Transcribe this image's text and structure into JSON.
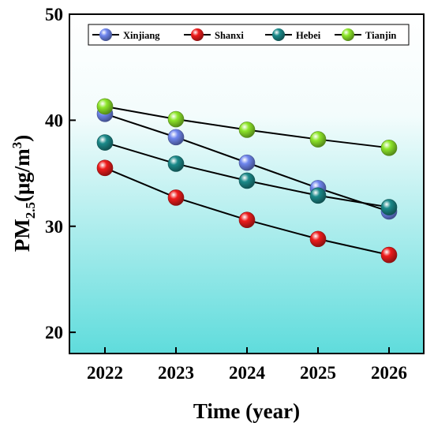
{
  "chart_data": {
    "type": "line",
    "title": "",
    "xlabel": "Time (year)",
    "ylabel": {
      "prefix": "PM",
      "subscript": "2.5",
      "unit_open": "(μg/m",
      "superscript": "3",
      "unit_close": ")"
    },
    "categories": [
      "2022",
      "2023",
      "2024",
      "2025",
      "2026"
    ],
    "ylim": [
      18,
      50
    ],
    "yticks": [
      20,
      30,
      40,
      50
    ],
    "grid": false,
    "legend_position": "top",
    "series": [
      {
        "name": "Xinjiang",
        "color": "#6f86ee",
        "values": [
          40.6,
          38.4,
          36.0,
          33.6,
          31.4
        ]
      },
      {
        "name": "Shanxi",
        "color": "#ee1c1c",
        "values": [
          35.5,
          32.7,
          30.6,
          28.8,
          27.3
        ]
      },
      {
        "name": "Hebei",
        "color": "#1b8a8a",
        "values": [
          37.9,
          35.9,
          34.3,
          32.9,
          31.8
        ]
      },
      {
        "name": "Tianjin",
        "color": "#8ee62a",
        "values": [
          41.3,
          40.1,
          39.1,
          38.2,
          37.4
        ]
      }
    ]
  }
}
